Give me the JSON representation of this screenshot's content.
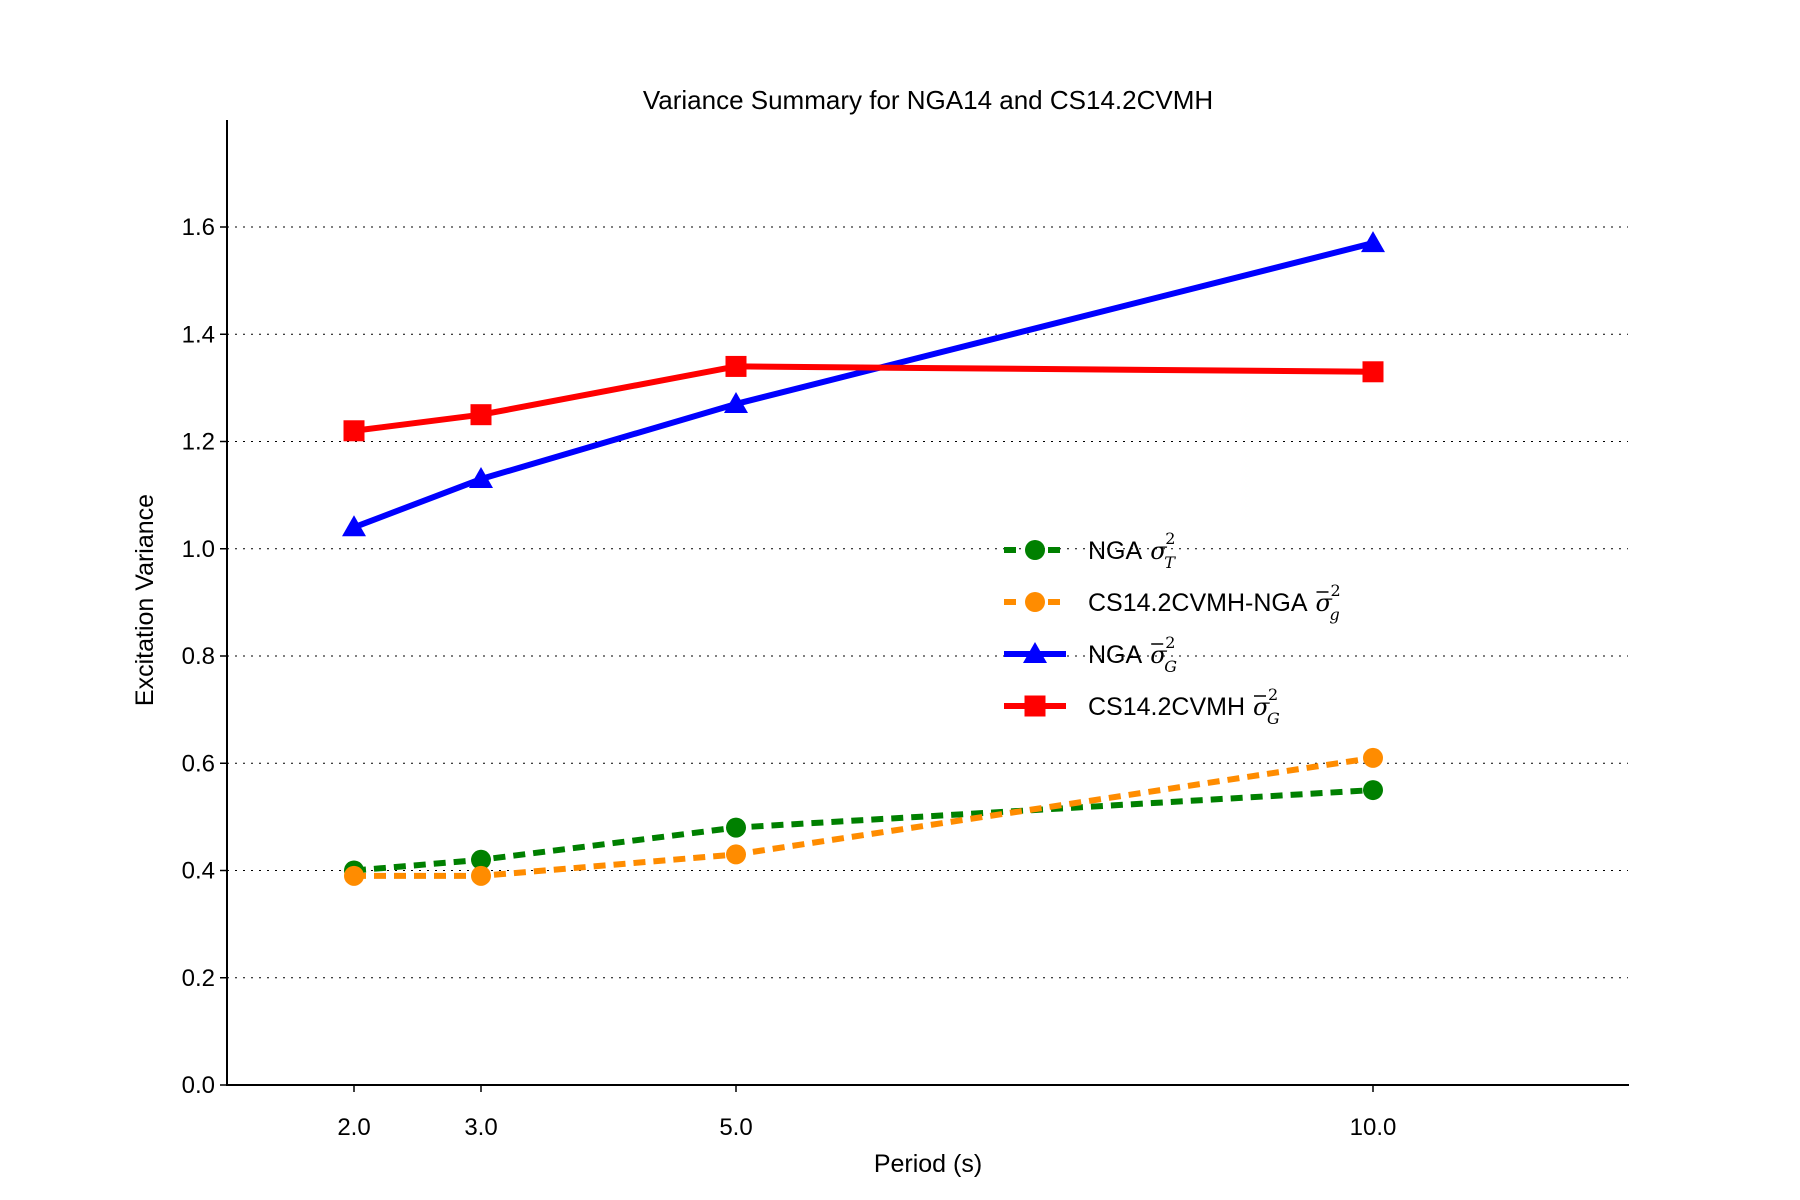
{
  "chart_data": {
    "type": "line",
    "title": "Variance Summary for NGA14 and CS14.2CVMH",
    "xlabel": "Period (s)",
    "ylabel": "Excitation Variance",
    "x": [
      2.0,
      3.0,
      5.0,
      10.0
    ],
    "x_tick_labels": [
      "2.0",
      "3.0",
      "5.0",
      "10.0"
    ],
    "xlim": [
      1.2,
      11.6
    ],
    "ylim": [
      0.0,
      1.8
    ],
    "y_ticks": [
      0.0,
      0.2,
      0.4,
      0.6,
      0.8,
      1.0,
      1.2,
      1.4,
      1.6
    ],
    "y_tick_labels": [
      "0.0",
      "0.2",
      "0.4",
      "0.6",
      "0.8",
      "1.0",
      "1.2",
      "1.4",
      "1.6"
    ],
    "grid": "horizontal dotted",
    "legend_placement": "center-right",
    "series": [
      {
        "name": "NGA σ_T^2",
        "label_text": "NGA",
        "symbol": "σ",
        "bar": false,
        "subscript": "T",
        "superscript": "2",
        "color": "#008000",
        "line_style": "dashed",
        "marker": "circle",
        "values": [
          0.4,
          0.42,
          0.48,
          0.55
        ]
      },
      {
        "name": "CS14.2CVMH-NGA σ̄_g^2",
        "label_text": "CS14.2CVMH-NGA",
        "symbol": "σ",
        "bar": true,
        "subscript": "g",
        "superscript": "2",
        "color": "#ff8c00",
        "line_style": "dashed",
        "marker": "circle",
        "values": [
          0.39,
          0.39,
          0.43,
          0.61
        ]
      },
      {
        "name": "NGA σ̄_G^2",
        "label_text": "NGA",
        "symbol": "σ",
        "bar": true,
        "subscript": "G",
        "superscript": "2",
        "color": "#0000ff",
        "line_style": "solid",
        "marker": "triangle",
        "values": [
          1.04,
          1.13,
          1.27,
          1.57
        ]
      },
      {
        "name": "CS14.2CVMH σ̄_G^2",
        "label_text": "CS14.2CVMH",
        "symbol": "σ",
        "bar": true,
        "subscript": "G",
        "superscript": "2",
        "color": "#ff0000",
        "line_style": "solid",
        "marker": "square",
        "values": [
          1.22,
          1.25,
          1.34,
          1.33
        ]
      }
    ]
  }
}
